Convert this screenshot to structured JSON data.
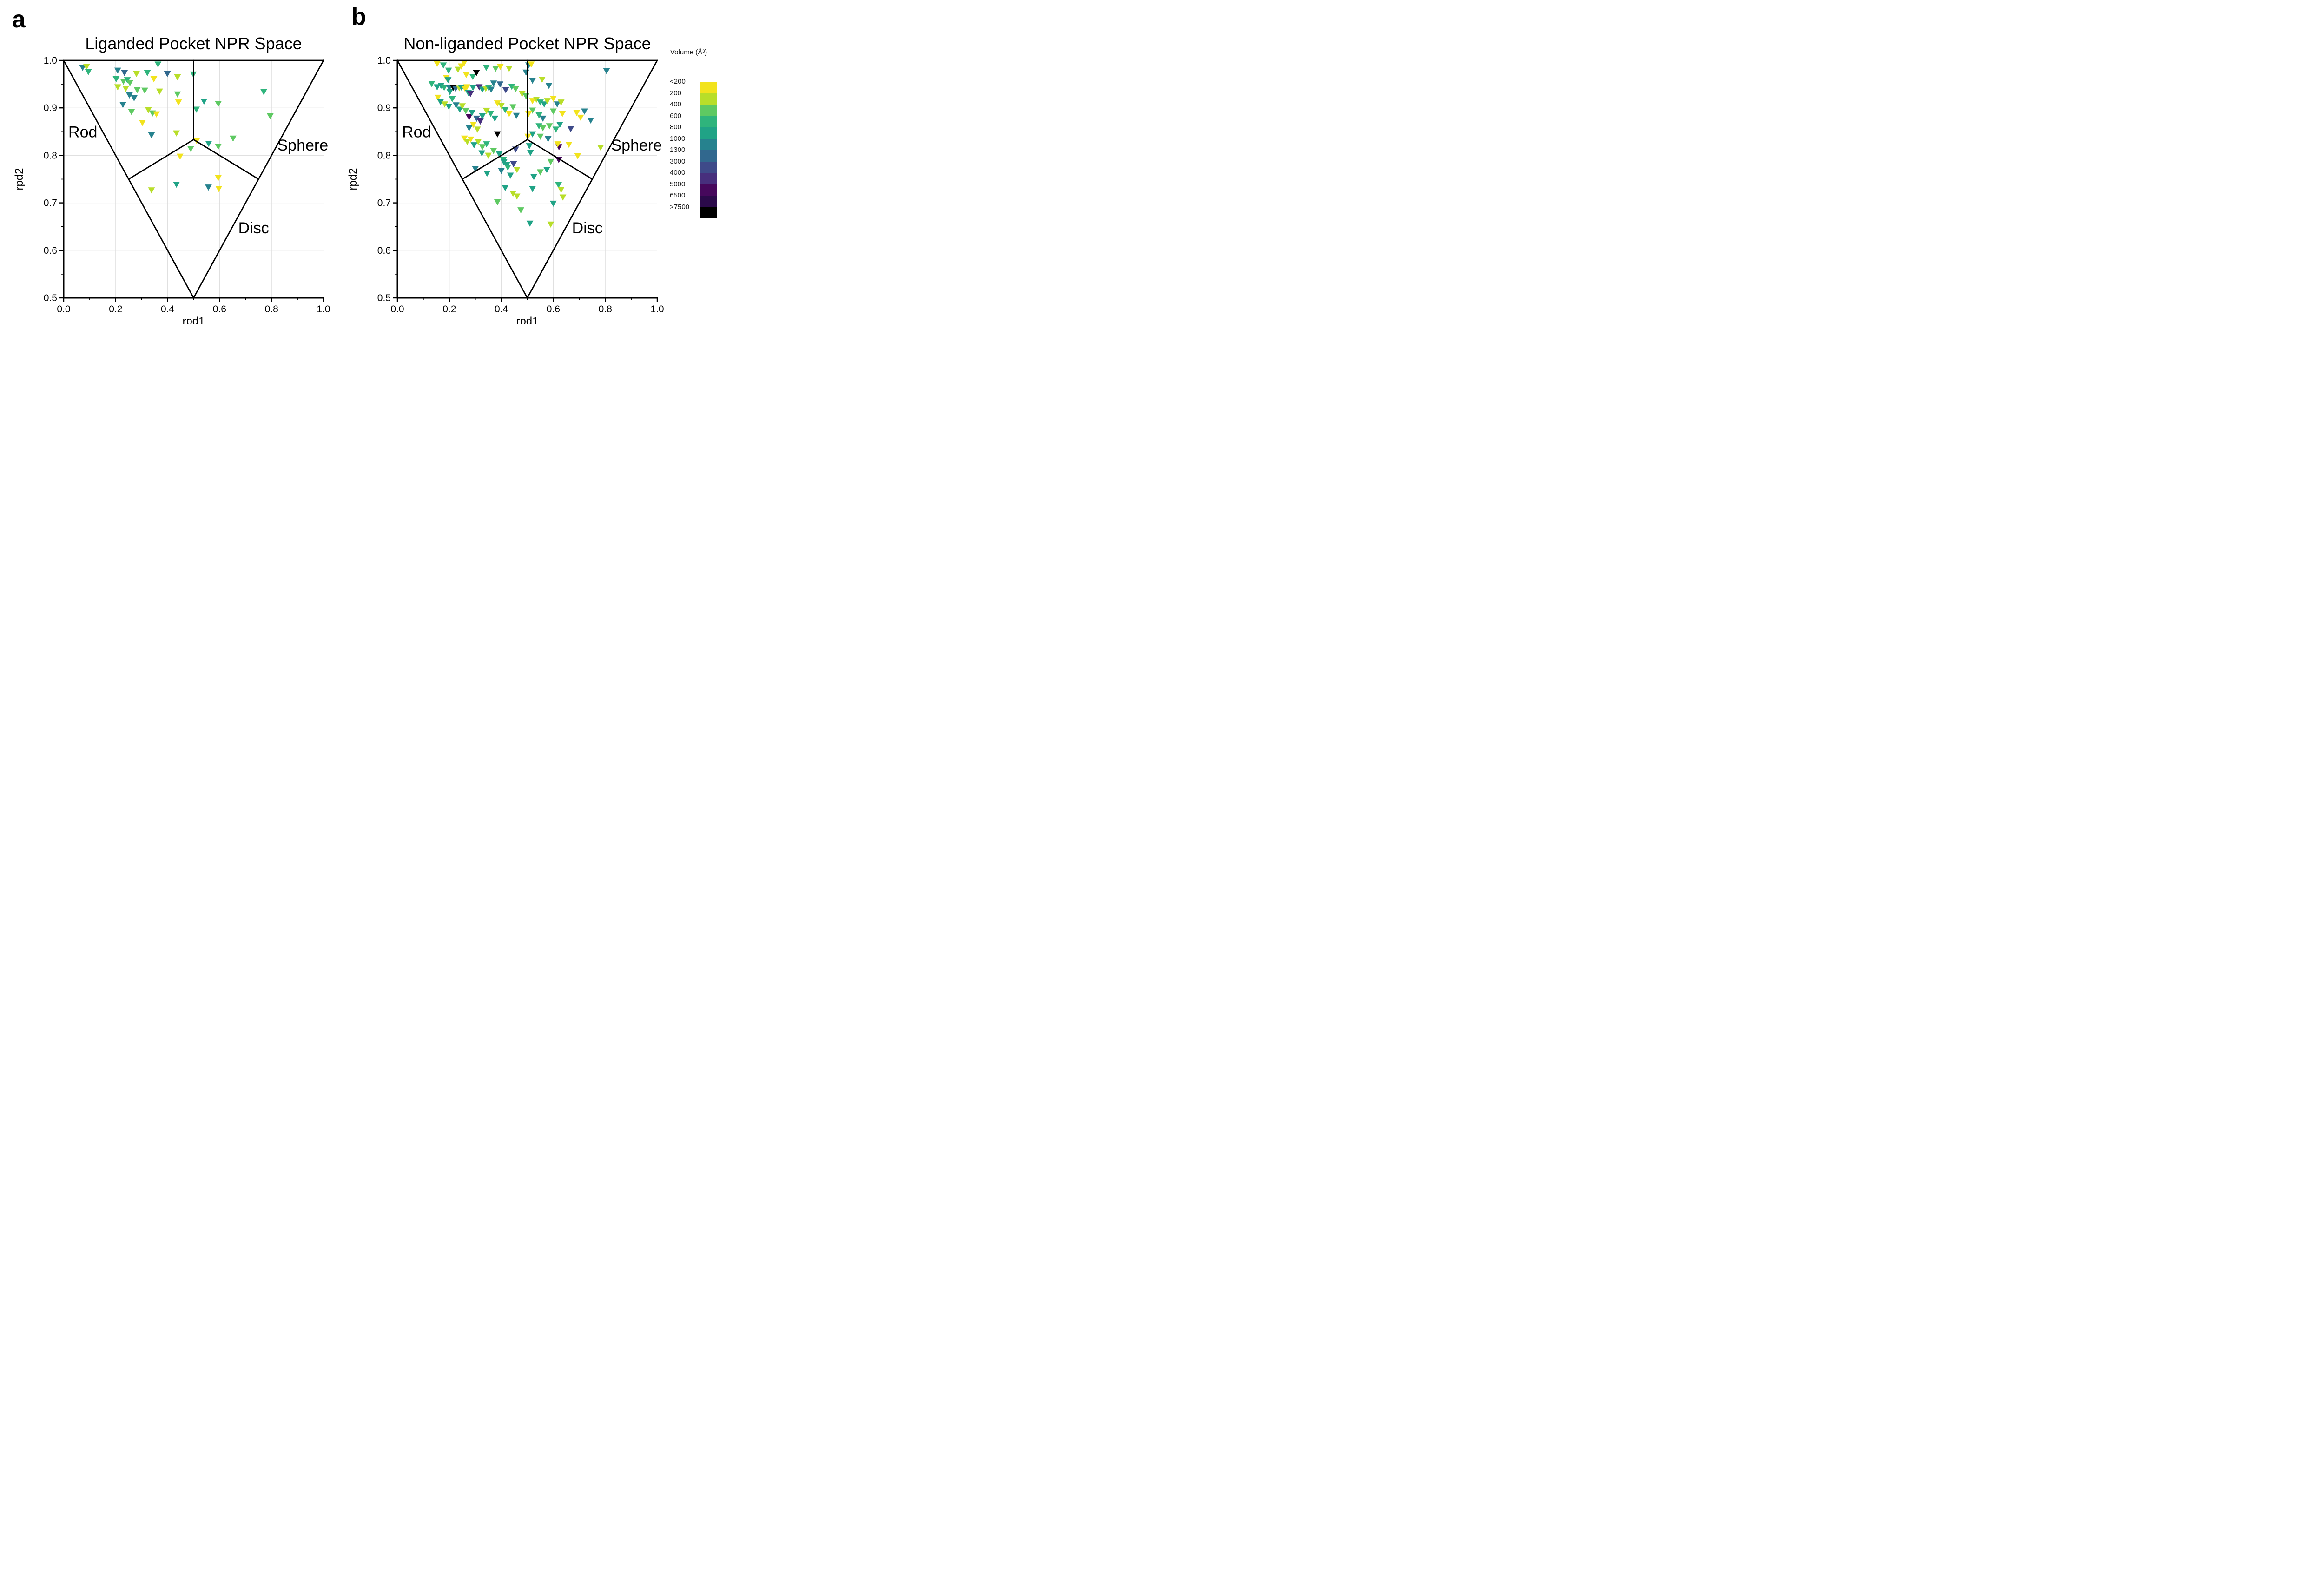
{
  "figure": {
    "letters": [
      "a",
      "b"
    ]
  },
  "legend": {
    "title": "Volume (Å³)",
    "entries": [
      {
        "label": "<200",
        "color": "#F2E31D"
      },
      {
        "label": "200",
        "color": "#B8DE29"
      },
      {
        "label": "400",
        "color": "#5EC962"
      },
      {
        "label": "600",
        "color": "#2FB47C"
      },
      {
        "label": "800",
        "color": "#20A386"
      },
      {
        "label": "1000",
        "color": "#26828E"
      },
      {
        "label": "1300",
        "color": "#31688E"
      },
      {
        "label": "3000",
        "color": "#3E4A89"
      },
      {
        "label": "4000",
        "color": "#472F7D"
      },
      {
        "label": "5000",
        "color": "#46085C"
      },
      {
        "label": "6500",
        "color": "#2B0A4A"
      },
      {
        "label": ">7500",
        "color": "#000000"
      }
    ]
  },
  "chart_data": [
    {
      "type": "scatter",
      "panel": "a",
      "title": "Liganded Pocket NPR Space",
      "xlabel": "rpd1",
      "ylabel": "rpd2",
      "xlim": [
        0.0,
        1.0
      ],
      "ylim": [
        0.5,
        1.0
      ],
      "x_ticks": [
        0.0,
        0.2,
        0.4,
        0.6,
        0.8,
        1.0
      ],
      "x_tick_labels": [
        "0.0",
        "0.2",
        "0.4",
        "0.6",
        "0.8",
        "1.0"
      ],
      "y_ticks": [
        0.5,
        0.6,
        0.7,
        0.8,
        0.9,
        1.0
      ],
      "y_tick_labels": [
        "0.5",
        "0.6",
        "0.7",
        "0.8",
        "0.9",
        "1.0"
      ],
      "grid": true,
      "marker": "triangle-down",
      "color_scale": "volume_bins_legend",
      "region_labels": [
        {
          "text": "Rod",
          "x": 0.018,
          "y": 0.838
        },
        {
          "text": "Sphere",
          "x": 0.822,
          "y": 0.81
        },
        {
          "text": "Disc",
          "x": 0.672,
          "y": 0.636
        }
      ],
      "boundary_lines": [
        [
          [
            0.0,
            1.0
          ],
          [
            1.0,
            1.0
          ]
        ],
        [
          [
            0.0,
            1.0
          ],
          [
            0.5,
            0.5
          ]
        ],
        [
          [
            1.0,
            1.0
          ],
          [
            0.5,
            0.5
          ]
        ],
        [
          [
            0.5,
            1.0
          ],
          [
            0.5,
            0.8333
          ]
        ],
        [
          [
            0.5,
            0.8333
          ],
          [
            0.25,
            0.75
          ]
        ],
        [
          [
            0.5,
            0.8333
          ],
          [
            0.75,
            0.75
          ]
        ]
      ],
      "points": [
        [
          0.073,
          0.985,
          5
        ],
        [
          0.088,
          0.987,
          1
        ],
        [
          0.095,
          0.976,
          3
        ],
        [
          0.208,
          0.979,
          5
        ],
        [
          0.234,
          0.974,
          6
        ],
        [
          0.28,
          0.972,
          1
        ],
        [
          0.322,
          0.974,
          3
        ],
        [
          0.363,
          0.992,
          3
        ],
        [
          0.399,
          0.972,
          6
        ],
        [
          0.438,
          0.965,
          1
        ],
        [
          0.499,
          0.971,
          3
        ],
        [
          0.202,
          0.961,
          3
        ],
        [
          0.23,
          0.956,
          2
        ],
        [
          0.245,
          0.959,
          3
        ],
        [
          0.255,
          0.953,
          2
        ],
        [
          0.208,
          0.944,
          1
        ],
        [
          0.239,
          0.941,
          1
        ],
        [
          0.283,
          0.938,
          2
        ],
        [
          0.312,
          0.937,
          2
        ],
        [
          0.347,
          0.961,
          0
        ],
        [
          0.369,
          0.935,
          1
        ],
        [
          0.253,
          0.927,
          5
        ],
        [
          0.271,
          0.921,
          5
        ],
        [
          0.438,
          0.929,
          2
        ],
        [
          0.228,
          0.907,
          5
        ],
        [
          0.261,
          0.892,
          2
        ],
        [
          0.326,
          0.896,
          1
        ],
        [
          0.342,
          0.889,
          2
        ],
        [
          0.357,
          0.887,
          0
        ],
        [
          0.442,
          0.912,
          0
        ],
        [
          0.511,
          0.897,
          3
        ],
        [
          0.54,
          0.914,
          4
        ],
        [
          0.595,
          0.909,
          2
        ],
        [
          0.77,
          0.934,
          3
        ],
        [
          0.795,
          0.883,
          2
        ],
        [
          0.303,
          0.869,
          0
        ],
        [
          0.338,
          0.843,
          5
        ],
        [
          0.434,
          0.847,
          1
        ],
        [
          0.512,
          0.831,
          0
        ],
        [
          0.558,
          0.825,
          4
        ],
        [
          0.595,
          0.819,
          2
        ],
        [
          0.652,
          0.836,
          2
        ],
        [
          0.489,
          0.814,
          2
        ],
        [
          0.448,
          0.798,
          0
        ],
        [
          0.595,
          0.753,
          0
        ],
        [
          0.338,
          0.727,
          1
        ],
        [
          0.434,
          0.739,
          4
        ],
        [
          0.557,
          0.733,
          5
        ],
        [
          0.597,
          0.73,
          0
        ]
      ]
    },
    {
      "type": "scatter",
      "panel": "b",
      "title": "Non-liganded Pocket NPR Space",
      "xlabel": "rpd1",
      "ylabel": "rpd2",
      "xlim": [
        0.0,
        1.0
      ],
      "ylim": [
        0.5,
        1.0
      ],
      "x_ticks": [
        0.0,
        0.2,
        0.4,
        0.6,
        0.8,
        1.0
      ],
      "x_tick_labels": [
        "0.0",
        "0.2",
        "0.4",
        "0.6",
        "0.8",
        "1.0"
      ],
      "y_ticks": [
        0.5,
        0.6,
        0.7,
        0.8,
        0.9,
        1.0
      ],
      "y_tick_labels": [
        "0.5",
        "0.6",
        "0.7",
        "0.8",
        "0.9",
        "1.0"
      ],
      "grid": true,
      "marker": "triangle-down",
      "color_scale": "volume_bins_legend",
      "region_labels": [
        {
          "text": "Rod",
          "x": 0.018,
          "y": 0.838
        },
        {
          "text": "Sphere",
          "x": 0.822,
          "y": 0.81
        },
        {
          "text": "Disc",
          "x": 0.672,
          "y": 0.636
        }
      ],
      "boundary_lines": [
        [
          [
            0.0,
            1.0
          ],
          [
            1.0,
            1.0
          ]
        ],
        [
          [
            0.0,
            1.0
          ],
          [
            0.5,
            0.5
          ]
        ],
        [
          [
            1.0,
            1.0
          ],
          [
            0.5,
            0.5
          ]
        ],
        [
          [
            0.5,
            1.0
          ],
          [
            0.5,
            0.8333
          ]
        ],
        [
          [
            0.5,
            0.8333
          ],
          [
            0.25,
            0.75
          ]
        ],
        [
          [
            0.5,
            0.8333
          ],
          [
            0.75,
            0.75
          ]
        ]
      ],
      "points": [
        [
          0.153,
          0.993,
          0
        ],
        [
          0.177,
          0.99,
          3
        ],
        [
          0.197,
          0.979,
          3
        ],
        [
          0.233,
          0.981,
          1
        ],
        [
          0.246,
          0.988,
          0
        ],
        [
          0.257,
          0.995,
          0
        ],
        [
          0.265,
          0.97,
          0
        ],
        [
          0.29,
          0.966,
          3
        ],
        [
          0.304,
          0.974,
          11
        ],
        [
          0.342,
          0.985,
          3
        ],
        [
          0.378,
          0.983,
          2
        ],
        [
          0.396,
          0.987,
          0
        ],
        [
          0.43,
          0.983,
          1
        ],
        [
          0.495,
          0.975,
          5
        ],
        [
          0.505,
          0.99,
          5
        ],
        [
          0.515,
          0.992,
          0
        ],
        [
          0.132,
          0.951,
          3
        ],
        [
          0.153,
          0.944,
          4
        ],
        [
          0.168,
          0.947,
          4
        ],
        [
          0.18,
          0.943,
          3
        ],
        [
          0.188,
          0.964,
          0
        ],
        [
          0.195,
          0.959,
          4
        ],
        [
          0.2,
          0.943,
          5
        ],
        [
          0.202,
          0.934,
          4
        ],
        [
          0.215,
          0.943,
          11
        ],
        [
          0.224,
          0.941,
          6
        ],
        [
          0.238,
          0.942,
          1
        ],
        [
          0.247,
          0.943,
          4
        ],
        [
          0.26,
          0.941,
          0
        ],
        [
          0.267,
          0.944,
          0
        ],
        [
          0.273,
          0.932,
          4
        ],
        [
          0.281,
          0.93,
          8
        ],
        [
          0.291,
          0.943,
          4
        ],
        [
          0.315,
          0.944,
          8
        ],
        [
          0.327,
          0.939,
          4
        ],
        [
          0.34,
          0.941,
          1
        ],
        [
          0.351,
          0.943,
          3
        ],
        [
          0.361,
          0.939,
          5
        ],
        [
          0.37,
          0.952,
          5
        ],
        [
          0.395,
          0.95,
          6
        ],
        [
          0.417,
          0.938,
          7
        ],
        [
          0.44,
          0.945,
          3
        ],
        [
          0.455,
          0.94,
          2
        ],
        [
          0.52,
          0.958,
          5
        ],
        [
          0.557,
          0.96,
          1
        ],
        [
          0.583,
          0.947,
          5
        ],
        [
          0.805,
          0.978,
          5
        ],
        [
          0.156,
          0.922,
          0
        ],
        [
          0.166,
          0.913,
          4
        ],
        [
          0.182,
          0.908,
          1
        ],
        [
          0.198,
          0.903,
          4
        ],
        [
          0.211,
          0.919,
          3
        ],
        [
          0.226,
          0.906,
          5
        ],
        [
          0.24,
          0.897,
          4
        ],
        [
          0.25,
          0.904,
          1
        ],
        [
          0.263,
          0.894,
          2
        ],
        [
          0.276,
          0.881,
          9
        ],
        [
          0.287,
          0.89,
          4
        ],
        [
          0.305,
          0.878,
          6
        ],
        [
          0.319,
          0.872,
          8
        ],
        [
          0.327,
          0.883,
          4
        ],
        [
          0.343,
          0.894,
          1
        ],
        [
          0.359,
          0.888,
          3
        ],
        [
          0.375,
          0.878,
          4
        ],
        [
          0.385,
          0.91,
          0
        ],
        [
          0.4,
          0.905,
          1
        ],
        [
          0.415,
          0.896,
          3
        ],
        [
          0.43,
          0.888,
          0
        ],
        [
          0.445,
          0.902,
          2
        ],
        [
          0.458,
          0.884,
          5
        ],
        [
          0.276,
          0.858,
          5
        ],
        [
          0.292,
          0.865,
          0
        ],
        [
          0.308,
          0.855,
          1
        ],
        [
          0.258,
          0.836,
          0
        ],
        [
          0.269,
          0.829,
          1
        ],
        [
          0.282,
          0.834,
          0
        ],
        [
          0.295,
          0.822,
          4
        ],
        [
          0.311,
          0.829,
          1
        ],
        [
          0.327,
          0.818,
          2
        ],
        [
          0.343,
          0.824,
          3
        ],
        [
          0.385,
          0.845,
          11
        ],
        [
          0.392,
          0.803,
          4
        ],
        [
          0.408,
          0.791,
          3
        ],
        [
          0.421,
          0.78,
          4
        ],
        [
          0.447,
          0.782,
          7
        ],
        [
          0.48,
          0.93,
          1
        ],
        [
          0.495,
          0.925,
          2
        ],
        [
          0.52,
          0.915,
          0
        ],
        [
          0.535,
          0.918,
          1
        ],
        [
          0.55,
          0.912,
          3
        ],
        [
          0.565,
          0.908,
          4
        ],
        [
          0.577,
          0.915,
          1
        ],
        [
          0.6,
          0.92,
          0
        ],
        [
          0.615,
          0.908,
          5
        ],
        [
          0.63,
          0.912,
          1
        ],
        [
          0.52,
          0.895,
          2
        ],
        [
          0.505,
          0.888,
          0
        ],
        [
          0.545,
          0.885,
          3
        ],
        [
          0.56,
          0.878,
          5
        ],
        [
          0.6,
          0.893,
          2
        ],
        [
          0.635,
          0.888,
          0
        ],
        [
          0.705,
          0.88,
          0
        ],
        [
          0.744,
          0.874,
          5
        ],
        [
          0.667,
          0.856,
          7
        ],
        [
          0.69,
          0.89,
          0
        ],
        [
          0.72,
          0.893,
          5
        ],
        [
          0.545,
          0.862,
          3
        ],
        [
          0.56,
          0.858,
          2
        ],
        [
          0.585,
          0.862,
          2
        ],
        [
          0.61,
          0.855,
          3
        ],
        [
          0.625,
          0.865,
          4
        ],
        [
          0.52,
          0.845,
          4
        ],
        [
          0.55,
          0.84,
          2
        ],
        [
          0.58,
          0.835,
          5
        ],
        [
          0.622,
          0.818,
          9
        ],
        [
          0.617,
          0.824,
          0
        ],
        [
          0.66,
          0.823,
          0
        ],
        [
          0.782,
          0.817,
          1
        ],
        [
          0.502,
          0.84,
          0
        ],
        [
          0.508,
          0.82,
          4
        ],
        [
          0.512,
          0.806,
          4
        ],
        [
          0.455,
          0.813,
          7
        ],
        [
          0.325,
          0.805,
          4
        ],
        [
          0.35,
          0.8,
          1
        ],
        [
          0.37,
          0.81,
          2
        ],
        [
          0.3,
          0.772,
          5
        ],
        [
          0.345,
          0.762,
          4
        ],
        [
          0.41,
          0.786,
          4
        ],
        [
          0.425,
          0.775,
          3
        ],
        [
          0.4,
          0.768,
          5
        ],
        [
          0.435,
          0.758,
          4
        ],
        [
          0.46,
          0.77,
          1
        ],
        [
          0.525,
          0.755,
          4
        ],
        [
          0.55,
          0.765,
          2
        ],
        [
          0.575,
          0.77,
          4
        ],
        [
          0.59,
          0.787,
          2
        ],
        [
          0.415,
          0.732,
          4
        ],
        [
          0.445,
          0.72,
          1
        ],
        [
          0.46,
          0.714,
          1
        ],
        [
          0.52,
          0.73,
          4
        ],
        [
          0.694,
          0.799,
          0
        ],
        [
          0.621,
          0.791,
          9
        ],
        [
          0.62,
          0.738,
          3
        ],
        [
          0.63,
          0.728,
          1
        ],
        [
          0.637,
          0.712,
          1
        ],
        [
          0.6,
          0.699,
          4
        ],
        [
          0.475,
          0.685,
          2
        ],
        [
          0.385,
          0.702,
          2
        ],
        [
          0.51,
          0.657,
          4
        ],
        [
          0.59,
          0.655,
          1
        ]
      ]
    }
  ]
}
